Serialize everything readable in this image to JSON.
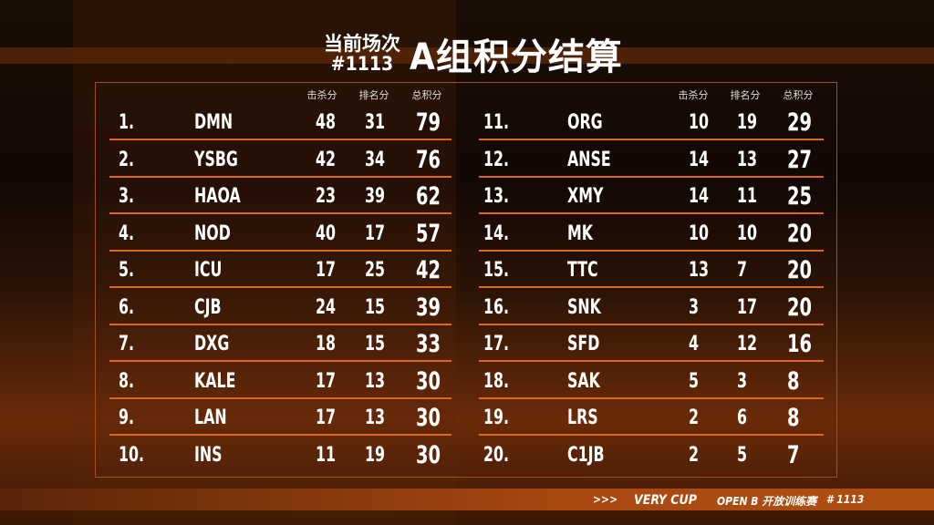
{
  "title": {
    "line1": "当前场次",
    "line2": "#1113",
    "main": "A组积分结算"
  },
  "headers": {
    "kills": "击杀分",
    "rank": "排名分",
    "total": "总积分"
  },
  "rows": [
    {
      "rank": "1.",
      "team": "DMN",
      "kills": "48",
      "place": "31",
      "total": "79"
    },
    {
      "rank": "2.",
      "team": "YSBG",
      "kills": "42",
      "place": "34",
      "total": "76"
    },
    {
      "rank": "3.",
      "team": "HAOA",
      "kills": "23",
      "place": "39",
      "total": "62"
    },
    {
      "rank": "4.",
      "team": "NOD",
      "kills": "40",
      "place": "17",
      "total": "57"
    },
    {
      "rank": "5.",
      "team": "ICU",
      "kills": "17",
      "place": "25",
      "total": "42"
    },
    {
      "rank": "6.",
      "team": "CJB",
      "kills": "24",
      "place": "15",
      "total": "39"
    },
    {
      "rank": "7.",
      "team": "DXG",
      "kills": "18",
      "place": "15",
      "total": "33"
    },
    {
      "rank": "8.",
      "team": "KALE",
      "kills": "17",
      "place": "13",
      "total": "30"
    },
    {
      "rank": "9.",
      "team": "LAN",
      "kills": "17",
      "place": "13",
      "total": "30"
    },
    {
      "rank": "10.",
      "team": "INS",
      "kills": "11",
      "place": "19",
      "total": "30"
    },
    {
      "rank": "11.",
      "team": "ORG",
      "kills": "10",
      "place": "19",
      "total": "29"
    },
    {
      "rank": "12.",
      "team": "ANSE",
      "kills": "14",
      "place": "13",
      "total": "27"
    },
    {
      "rank": "13.",
      "team": "XMY",
      "kills": "14",
      "place": "11",
      "total": "25"
    },
    {
      "rank": "14.",
      "team": "MK",
      "kills": "10",
      "place": "10",
      "total": "20"
    },
    {
      "rank": "15.",
      "team": "TTC",
      "kills": "13",
      "place": "7",
      "total": "20"
    },
    {
      "rank": "16.",
      "team": "SNK",
      "kills": "3",
      "place": "17",
      "total": "20"
    },
    {
      "rank": "17.",
      "team": "SFD",
      "kills": "4",
      "place": "12",
      "total": "16"
    },
    {
      "rank": "18.",
      "team": "SAK",
      "kills": "5",
      "place": "3",
      "total": "8"
    },
    {
      "rank": "19.",
      "team": "LRS",
      "kills": "2",
      "place": "6",
      "total": "8"
    },
    {
      "rank": "20.",
      "team": "C1JB",
      "kills": "2",
      "place": "5",
      "total": "7"
    }
  ],
  "footer": {
    "arrows": ">>>",
    "brand": "VERY CUP",
    "event": "OPEN B 开放训练赛",
    "match": "#  1113"
  },
  "colors": {
    "accent": "#e0661a",
    "footer": "#a84810"
  }
}
